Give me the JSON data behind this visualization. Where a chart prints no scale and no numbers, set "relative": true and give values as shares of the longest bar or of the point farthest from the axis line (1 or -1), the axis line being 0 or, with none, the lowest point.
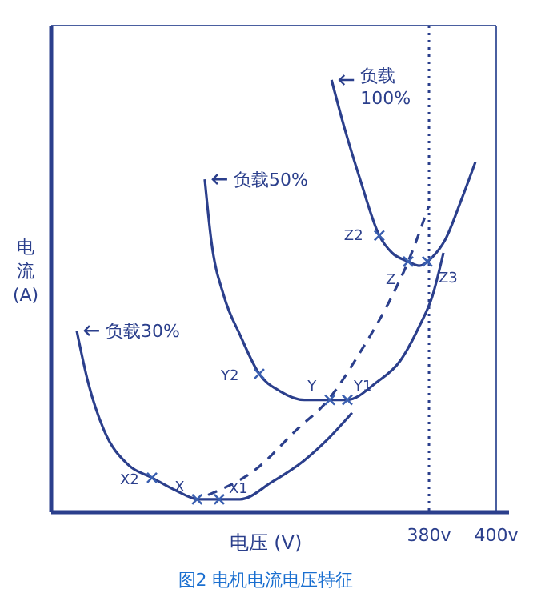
{
  "chart_data": {
    "type": "line",
    "title": "图2 电机电流电压特征",
    "xlabel": "电压 (V)",
    "ylabel": "电流(A)",
    "relative": true,
    "xlim": [
      267.6,
      400
    ],
    "xticks": [
      {
        "value": 380,
        "label": "380v"
      },
      {
        "value": 400,
        "label": "400v"
      }
    ],
    "legend": "top left",
    "line_style": "solid",
    "series": [
      {
        "name": "负载30%",
        "color": "#2b3f8c",
        "x": [
          275.2,
          278.6,
          283.3,
          290.5,
          297.6,
          304.8,
          311.4,
          317.1,
          323.8,
          333.3,
          342.9,
          350,
          357.1
        ],
        "values": [
          0.42,
          0.3,
          0.19,
          0.11,
          0.08,
          0.05,
          0.03,
          0.03,
          0.03,
          0.07,
          0.12,
          0.17,
          0.23
        ]
      },
      {
        "name": "负载50%",
        "color": "#2b3f8c",
        "x": [
          313.3,
          315.2,
          319.0,
          323.8,
          329.5,
          335.7,
          342.9,
          350.5,
          355.7,
          364.3,
          371.4,
          377.1,
          381.0,
          384.3
        ],
        "values": [
          0.77,
          0.63,
          0.5,
          0.41,
          0.32,
          0.28,
          0.26,
          0.26,
          0.26,
          0.3,
          0.35,
          0.43,
          0.5,
          0.6
        ]
      },
      {
        "name": "负载100%",
        "color": "#2b3f8c",
        "x": [
          351.0,
          354.8,
          359.5,
          365.2,
          369.0,
          373.8,
          377.1,
          381.0,
          384.8,
          389.5,
          393.8
        ],
        "values": [
          1.0,
          0.89,
          0.77,
          0.64,
          0.6,
          0.58,
          0.57,
          0.59,
          0.63,
          0.72,
          0.81
        ]
      },
      {
        "color": "#2b3f8c",
        "line_style": "dashed",
        "x": [
          314.3,
          328.6,
          340.5,
          350,
          359.5,
          369.0,
          373.8,
          380
        ],
        "values": [
          0.04,
          0.1,
          0.19,
          0.26,
          0.37,
          0.5,
          0.58,
          0.71
        ]
      },
      {
        "type": "scatter",
        "marker": "cross",
        "color": "#3a5fb0",
        "x": [
          311.0,
          317.6,
          297.6,
          350.5,
          355.7,
          329.5,
          373.8,
          365.2,
          379.5
        ],
        "values": [
          0.03,
          0.03,
          0.08,
          0.26,
          0.26,
          0.32,
          0.58,
          0.64,
          0.58
        ]
      }
    ],
    "ref_lines": [
      {
        "axis": "x",
        "value": 380,
        "color": "#2b3f8c",
        "line_style": "dotted"
      }
    ],
    "annotations": [
      {
        "text": "X",
        "x": 311.0,
        "y": 0.03
      },
      {
        "text": "X1",
        "x": 317.6,
        "y": 0.03
      },
      {
        "text": "X2",
        "x": 297.6,
        "y": 0.08
      },
      {
        "text": "Y",
        "x": 350.5,
        "y": 0.26
      },
      {
        "text": "Y1",
        "x": 355.7,
        "y": 0.26
      },
      {
        "text": "Y2",
        "x": 329.5,
        "y": 0.32
      },
      {
        "text": "Z",
        "x": 373.8,
        "y": 0.58
      },
      {
        "text": "Z2",
        "x": 365.2,
        "y": 0.64
      },
      {
        "text": "Z3",
        "x": 379.5,
        "y": 0.58
      }
    ]
  }
}
